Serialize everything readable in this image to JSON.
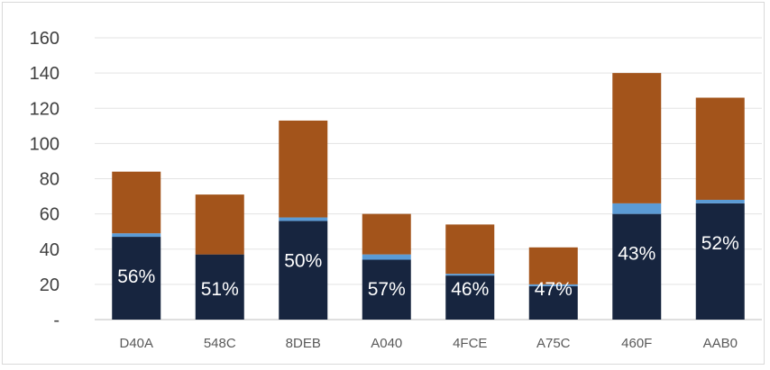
{
  "chart_data": {
    "type": "bar",
    "stacked": true,
    "categories": [
      "D40A",
      "548C",
      "8DEB",
      "A040",
      "4FCE",
      "A75C",
      "460F",
      "AAB0"
    ],
    "series": [
      {
        "color": "#17253f",
        "values": [
          47,
          37,
          56,
          34,
          25,
          19,
          60,
          66
        ]
      },
      {
        "color": "#5b9bd5",
        "values": [
          2,
          0,
          2,
          3,
          1,
          1,
          6,
          2
        ]
      },
      {
        "color": "#a3541b",
        "values": [
          35,
          34,
          55,
          23,
          28,
          21,
          74,
          58
        ]
      }
    ],
    "data_labels": [
      "56%",
      "51%",
      "50%",
      "57%",
      "46%",
      "47%",
      "43%",
      "52%"
    ],
    "y_ticks": [
      "-",
      "20",
      "40",
      "60",
      "80",
      "100",
      "120",
      "140",
      "160"
    ],
    "ylim": [
      0,
      160
    ],
    "grid": true,
    "title": "",
    "xlabel": "",
    "ylabel": ""
  }
}
